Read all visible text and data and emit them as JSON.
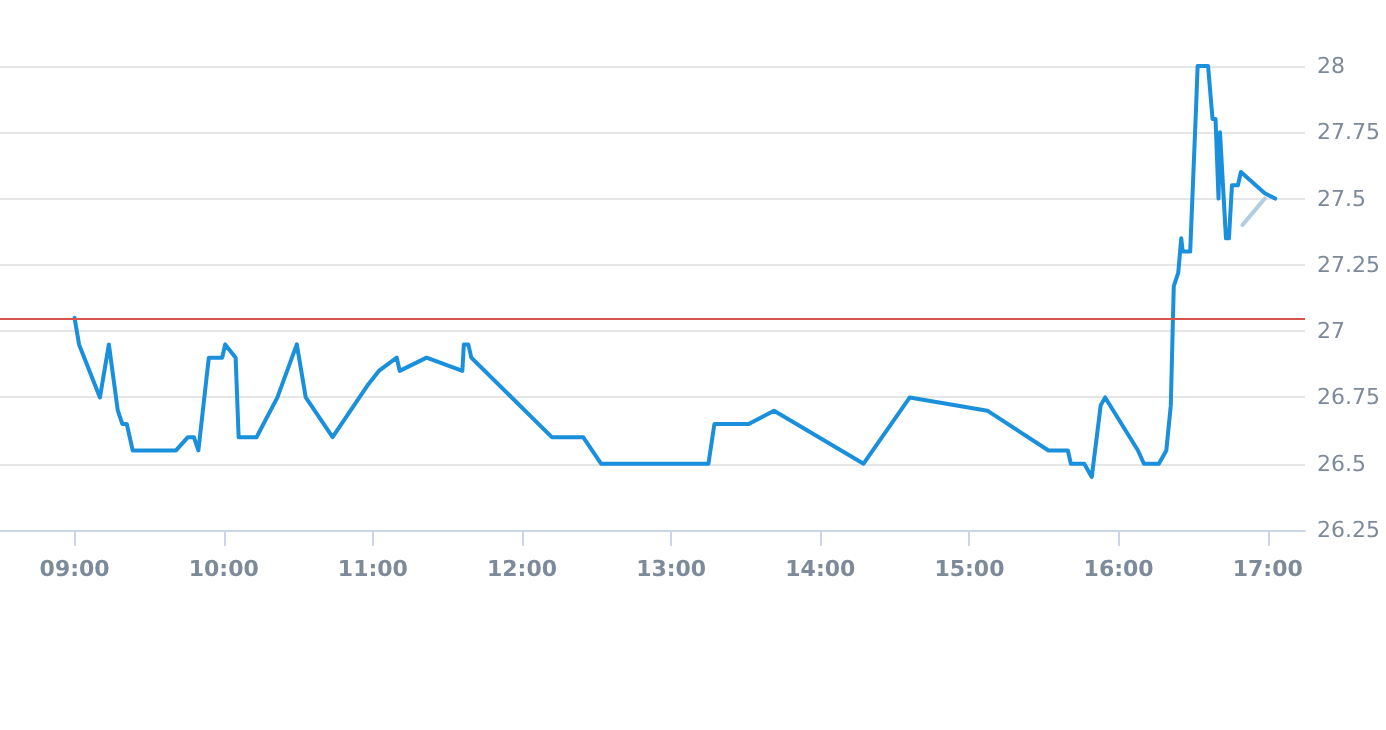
{
  "chart_data": {
    "type": "line",
    "x": [
      9.0,
      9.03,
      9.17,
      9.23,
      9.29,
      9.32,
      9.35,
      9.39,
      9.68,
      9.76,
      9.8,
      9.83,
      9.9,
      9.99,
      10.01,
      10.08,
      10.1,
      10.22,
      10.36,
      10.49,
      10.55,
      10.73,
      10.97,
      11.04,
      11.16,
      11.18,
      11.36,
      11.6,
      11.61,
      11.64,
      11.66,
      12.2,
      12.41,
      12.53,
      13.25,
      13.29,
      13.52,
      13.69,
      14.29,
      14.6,
      15.12,
      15.53,
      15.66,
      15.68,
      15.77,
      15.82,
      15.88,
      15.91,
      16.13,
      16.17,
      16.27,
      16.32,
      16.35,
      16.37,
      16.4,
      16.42,
      16.43,
      16.48,
      16.52,
      16.53,
      16.6,
      16.63,
      16.65,
      16.67,
      16.68,
      16.72,
      16.74,
      16.76,
      16.8,
      16.82,
      16.98,
      17.05
    ],
    "series": [
      {
        "color": "#1a8fdc",
        "values": [
          27.05,
          26.95,
          26.75,
          26.95,
          26.7,
          26.65,
          26.65,
          26.55,
          26.55,
          26.6,
          26.6,
          26.55,
          26.9,
          26.9,
          26.95,
          26.9,
          26.6,
          26.6,
          26.75,
          26.95,
          26.75,
          26.6,
          26.8,
          26.85,
          26.9,
          26.85,
          26.9,
          26.85,
          26.95,
          26.95,
          26.9,
          26.6,
          26.6,
          26.5,
          26.5,
          26.65,
          26.65,
          26.7,
          26.5,
          26.75,
          26.7,
          26.55,
          26.55,
          26.5,
          26.5,
          26.45,
          26.72,
          26.75,
          26.55,
          26.5,
          26.5,
          26.55,
          26.72,
          27.17,
          27.22,
          27.35,
          27.3,
          27.3,
          27.85,
          28,
          28,
          27.8,
          27.8,
          27.5,
          27.75,
          27.35,
          27.35,
          27.55,
          27.55,
          27.6,
          27.52,
          27.5
        ]
      },
      {
        "color": "#b3cde0",
        "x": [
          16.83,
          16.98
        ],
        "values": [
          27.4,
          27.5
        ]
      }
    ],
    "xlim": [
      8.5,
      17.25
    ],
    "xticks": [
      {
        "value": 9,
        "label": "09:00"
      },
      {
        "value": 10,
        "label": "10:00"
      },
      {
        "value": 11,
        "label": "11:00"
      },
      {
        "value": 12,
        "label": "12:00"
      },
      {
        "value": 13,
        "label": "13:00"
      },
      {
        "value": 14,
        "label": "14:00"
      },
      {
        "value": 15,
        "label": "15:00"
      },
      {
        "value": 16,
        "label": "16:00"
      },
      {
        "value": 17,
        "label": "17:00"
      }
    ],
    "ylim": [
      26.25,
      28
    ],
    "yticks": [
      26.25,
      26.5,
      26.75,
      27,
      27.25,
      27.5,
      27.75,
      28
    ],
    "ref_lines": [
      {
        "axis": "y",
        "value": 27.05,
        "color": "#d9534f"
      }
    ],
    "grid": "y",
    "marker": "none",
    "line_style": "solid"
  }
}
